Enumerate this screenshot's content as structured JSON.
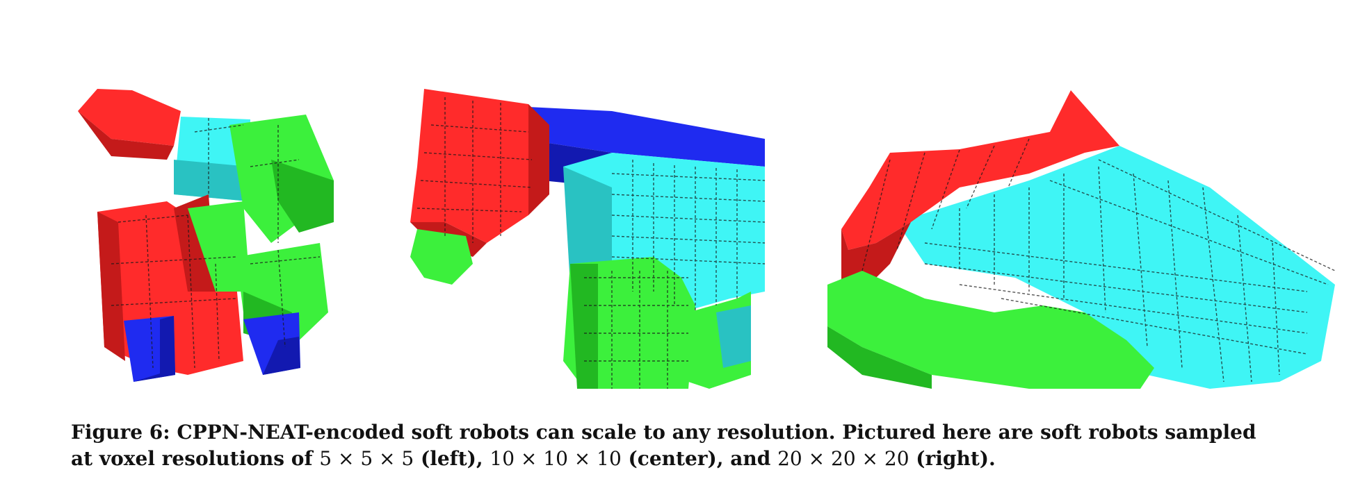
{
  "figure": {
    "robots": [
      {
        "name": "left",
        "resolution": "5 × 5 × 5"
      },
      {
        "name": "center",
        "resolution": "10 × 10 × 10"
      },
      {
        "name": "right",
        "resolution": "20 × 20 × 20"
      }
    ],
    "colors": {
      "red": "#ff2b2b",
      "red_dark": "#c41a1a",
      "cyan": "#3ff5f5",
      "cyan_dark": "#29c2c2",
      "green": "#3cf03c",
      "green_dark": "#22b822",
      "blue": "#1f2bf0",
      "blue_dark": "#1219b0"
    }
  },
  "caption": {
    "label": "Figure 6:",
    "line1_text": " CPPN-NEAT-encoded soft robots can scale to any resolution.  Pictured here are soft robots sampled",
    "line2_a": "at voxel resolutions of ",
    "res_left": "5 × 5 × 5",
    "line2_b": " (left), ",
    "res_center": "10 × 10 × 10",
    "line2_c": " (center), and ",
    "res_right": "20 × 20 × 20",
    "line2_d": " (right)."
  }
}
